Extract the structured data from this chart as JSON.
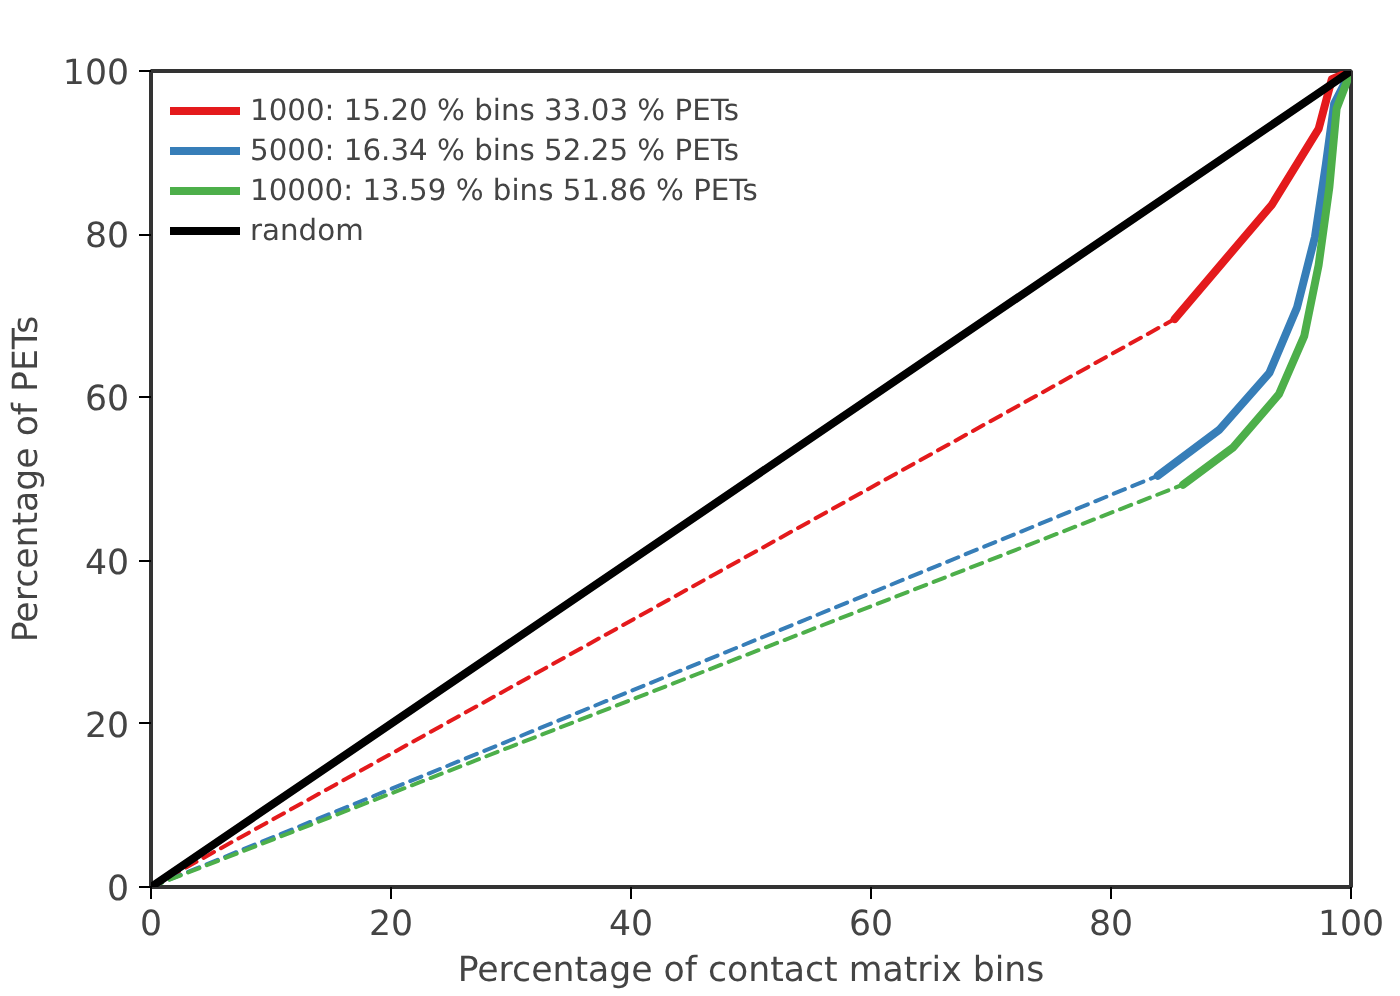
{
  "chart_data": {
    "type": "line",
    "xlabel": "Percentage of contact matrix bins",
    "ylabel": "Percentage of PETs",
    "xlim": [
      0,
      100
    ],
    "ylim": [
      0,
      100
    ],
    "xticks": [
      0,
      20,
      40,
      60,
      80,
      100
    ],
    "yticks": [
      0,
      20,
      40,
      60,
      80,
      100
    ],
    "grid": false,
    "legend": "top left",
    "marker": "none",
    "series": [
      {
        "color": "#e41a1c",
        "line_style": "dashed",
        "x": [
          0,
          85.3
        ],
        "values": [
          0,
          69.6
        ]
      },
      {
        "color": "#377eb8",
        "line_style": "dashed",
        "x": [
          0,
          83.9
        ],
        "values": [
          0,
          50.4
        ]
      },
      {
        "color": "#4daf4a",
        "line_style": "dashed",
        "x": [
          0,
          86.0
        ],
        "values": [
          0,
          49.3
        ]
      },
      {
        "name": "1000: 15.20 % bins 33.03 % PETs",
        "color": "#e41a1c",
        "line_style": "solid",
        "x": [
          85.3,
          89.0,
          93.4,
          97.3,
          98.4,
          100
        ],
        "values": [
          69.6,
          76.0,
          83.6,
          92.9,
          99.0,
          100
        ]
      },
      {
        "name": "5000: 16.34 % bins 52.25 % PETs",
        "color": "#377eb8",
        "line_style": "solid",
        "x": [
          83.9,
          89.0,
          93.2,
          95.5,
          97.0,
          97.9,
          98.6,
          100
        ],
        "values": [
          50.4,
          56.0,
          63.0,
          71.0,
          79.7,
          88.5,
          96.0,
          100
        ]
      },
      {
        "name": "10000: 13.59 % bins 51.86 % PETs",
        "color": "#4daf4a",
        "line_style": "solid",
        "x": [
          86.0,
          90.2,
          94.0,
          96.1,
          97.3,
          98.2,
          98.8,
          100
        ],
        "values": [
          49.3,
          53.9,
          60.4,
          67.5,
          76.2,
          85.8,
          95.4,
          100
        ]
      },
      {
        "name": "random",
        "color": "#000000",
        "line_style": "solid",
        "x": [
          0,
          100
        ],
        "values": [
          0,
          100
        ]
      }
    ]
  }
}
